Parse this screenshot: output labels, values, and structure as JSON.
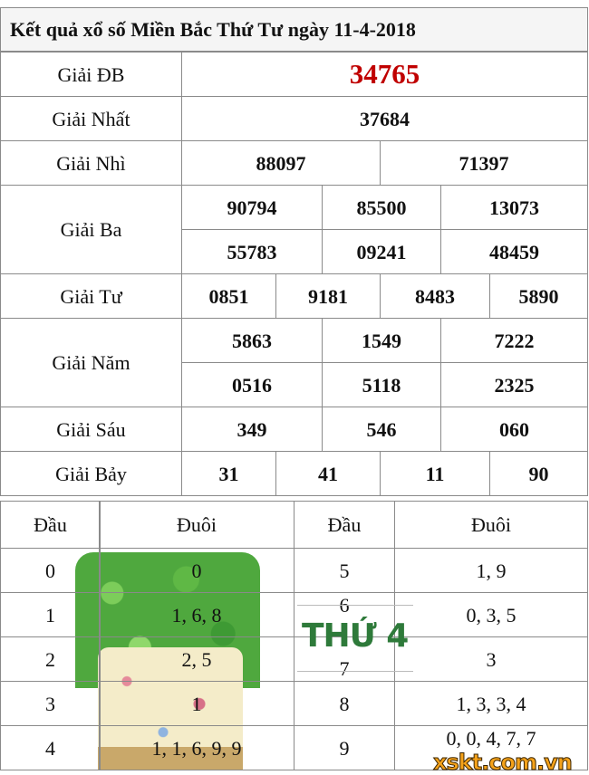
{
  "title": "Kết quả xổ số Miền Bắc Thứ Tư ngày 11-4-2018",
  "prizes": {
    "db": {
      "label": "Giải ĐB",
      "numbers": [
        "34765"
      ]
    },
    "nhat": {
      "label": "Giải Nhất",
      "numbers": [
        "37684"
      ]
    },
    "nhi": {
      "label": "Giải Nhì",
      "numbers": [
        "88097",
        "71397"
      ]
    },
    "ba": {
      "label": "Giải Ba",
      "numbers": [
        "90794",
        "85500",
        "13073",
        "55783",
        "09241",
        "48459"
      ]
    },
    "tu": {
      "label": "Giải Tư",
      "numbers": [
        "0851",
        "9181",
        "8483",
        "5890"
      ]
    },
    "nam": {
      "label": "Giải Năm",
      "numbers": [
        "5863",
        "1549",
        "7222",
        "0516",
        "5118",
        "2325"
      ]
    },
    "sau": {
      "label": "Giải Sáu",
      "numbers": [
        "349",
        "546",
        "060"
      ]
    },
    "bay": {
      "label": "Giải Bảy",
      "numbers": [
        "31",
        "41",
        "11",
        "90"
      ]
    }
  },
  "loto": {
    "headers": [
      "Đầu",
      "Đuôi",
      "Đầu",
      "Đuôi"
    ],
    "rows": [
      [
        "0",
        "0",
        "5",
        "1, 9"
      ],
      [
        "1",
        "1, 6, 8",
        "6",
        "0, 3, 5"
      ],
      [
        "2",
        "2, 5",
        "7",
        "3"
      ],
      [
        "3",
        "1",
        "8",
        "1, 3, 3, 4"
      ],
      [
        "4",
        "1, 1, 6, 9, 9",
        "9",
        "0, 0, 4, 7, 7"
      ]
    ]
  },
  "banner": {
    "text": "THỨ 4"
  },
  "watermark": "xskt.com.vn",
  "colors": {
    "special_prize": "#c00000",
    "banner": "#2e7a3a",
    "watermark": "#f5a21a"
  }
}
